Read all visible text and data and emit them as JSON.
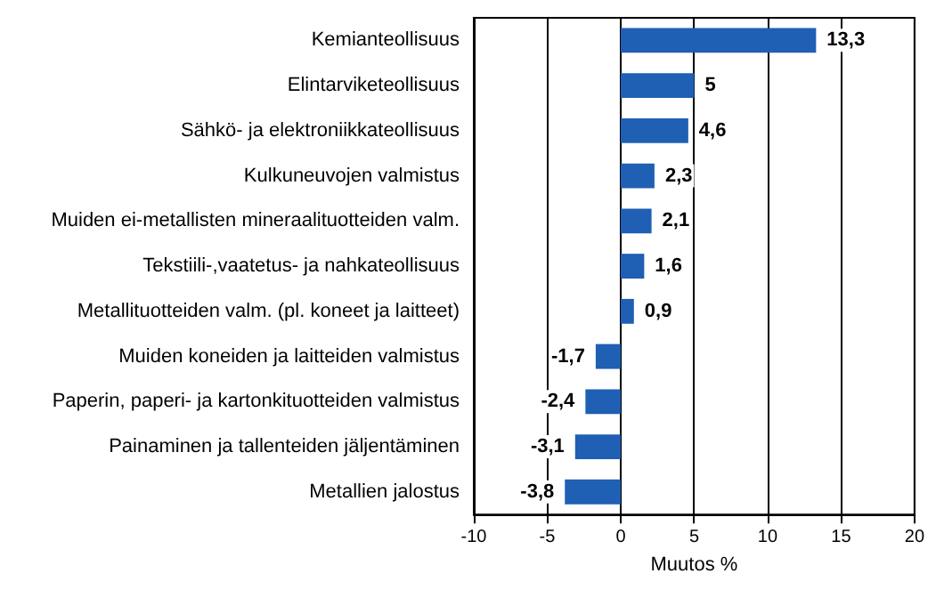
{
  "chart_data": {
    "type": "bar",
    "orientation": "horizontal",
    "xlabel": "Muutos %",
    "categories": [
      "Kemianteollisuus",
      "Elintarviketeollisuus",
      "Sähkö- ja elektroniikkateollisuus",
      "Kulkuneuvojen valmistus",
      "Muiden ei-metallisten mineraalituotteiden valm.",
      "Tekstiili-,vaatetus- ja nahkateollisuus",
      "Metallituotteiden valm. (pl. koneet ja laitteet)",
      "Muiden koneiden ja laitteiden valmistus",
      "Paperin, paperi- ja kartonkituotteiden valmistus",
      "Painaminen ja tallenteiden jäljentäminen",
      "Metallien jalostus"
    ],
    "values": [
      13.3,
      5,
      4.6,
      2.3,
      2.1,
      1.6,
      0.9,
      -1.7,
      -2.4,
      -3.1,
      -3.8
    ],
    "value_labels": [
      "13,3",
      "5",
      "4,6",
      "2,3",
      "2,1",
      "1,6",
      "0,9",
      "-1,7",
      "-2,4",
      "-3,1",
      "-3,8"
    ],
    "color": "#1f5fb4",
    "xlim": [
      -10,
      20
    ],
    "xticks": [
      -10,
      -5,
      0,
      5,
      10,
      15,
      20
    ],
    "grid": "x"
  }
}
